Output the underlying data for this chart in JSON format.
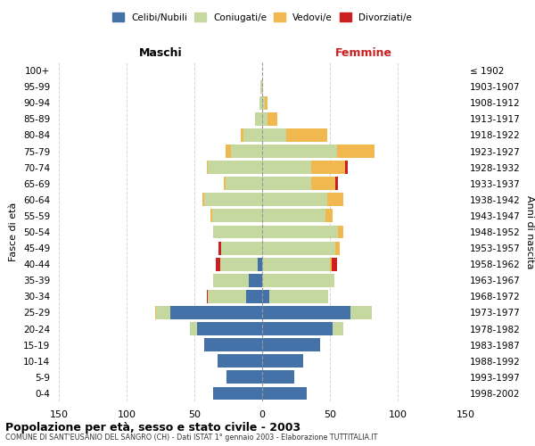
{
  "age_groups": [
    "0-4",
    "5-9",
    "10-14",
    "15-19",
    "20-24",
    "25-29",
    "30-34",
    "35-39",
    "40-44",
    "45-49",
    "50-54",
    "55-59",
    "60-64",
    "65-69",
    "70-74",
    "75-79",
    "80-84",
    "85-89",
    "90-94",
    "95-99",
    "100+"
  ],
  "birth_years": [
    "1998-2002",
    "1993-1997",
    "1988-1992",
    "1983-1987",
    "1978-1982",
    "1973-1977",
    "1968-1972",
    "1963-1967",
    "1958-1962",
    "1953-1957",
    "1948-1952",
    "1943-1947",
    "1938-1942",
    "1933-1937",
    "1928-1932",
    "1923-1927",
    "1918-1922",
    "1913-1917",
    "1908-1912",
    "1903-1907",
    "≤ 1902"
  ],
  "males": {
    "celibi": [
      36,
      26,
      33,
      43,
      48,
      68,
      12,
      10,
      3,
      0,
      0,
      0,
      0,
      0,
      0,
      0,
      0,
      0,
      0,
      0,
      0
    ],
    "coniugati": [
      0,
      0,
      0,
      0,
      5,
      10,
      28,
      26,
      28,
      30,
      36,
      37,
      43,
      27,
      40,
      23,
      14,
      5,
      2,
      1,
      0
    ],
    "vedovi": [
      0,
      0,
      0,
      0,
      0,
      1,
      0,
      0,
      0,
      0,
      0,
      1,
      1,
      1,
      1,
      4,
      2,
      0,
      0,
      0,
      0
    ],
    "divorziati": [
      0,
      0,
      0,
      0,
      0,
      0,
      1,
      0,
      3,
      2,
      0,
      0,
      0,
      0,
      0,
      0,
      0,
      0,
      0,
      0,
      0
    ]
  },
  "females": {
    "nubili": [
      33,
      24,
      30,
      43,
      52,
      65,
      5,
      0,
      0,
      0,
      0,
      0,
      0,
      0,
      0,
      0,
      0,
      0,
      0,
      0,
      0
    ],
    "coniugate": [
      0,
      0,
      0,
      0,
      8,
      16,
      44,
      53,
      50,
      54,
      56,
      47,
      48,
      36,
      36,
      55,
      18,
      4,
      2,
      0,
      0
    ],
    "vedove": [
      0,
      0,
      0,
      0,
      0,
      0,
      0,
      0,
      1,
      3,
      4,
      5,
      12,
      18,
      25,
      28,
      30,
      7,
      2,
      0,
      0
    ],
    "divorziate": [
      0,
      0,
      0,
      0,
      0,
      0,
      0,
      0,
      4,
      0,
      0,
      0,
      0,
      2,
      2,
      0,
      0,
      0,
      0,
      0,
      0
    ]
  },
  "colors": {
    "celibi": "#4472a8",
    "coniugati": "#c5d8a0",
    "vedovi": "#f0b84e",
    "divorziati": "#cc2020"
  },
  "xlim": 150,
  "title": "Popolazione per età, sesso e stato civile - 2003",
  "subtitle": "COMUNE DI SANT'EUSANIO DEL SANGRO (CH) - Dati ISTAT 1° gennaio 2003 - Elaborazione TUTTITALIA.IT",
  "ylabel_left": "Fasce di età",
  "ylabel_right": "Anni di nascita",
  "maschi_label": "Maschi",
  "femmine_label": "Femmine",
  "legend_labels": [
    "Celibi/Nubili",
    "Coniugati/e",
    "Vedovi/e",
    "Divorziati/e"
  ]
}
